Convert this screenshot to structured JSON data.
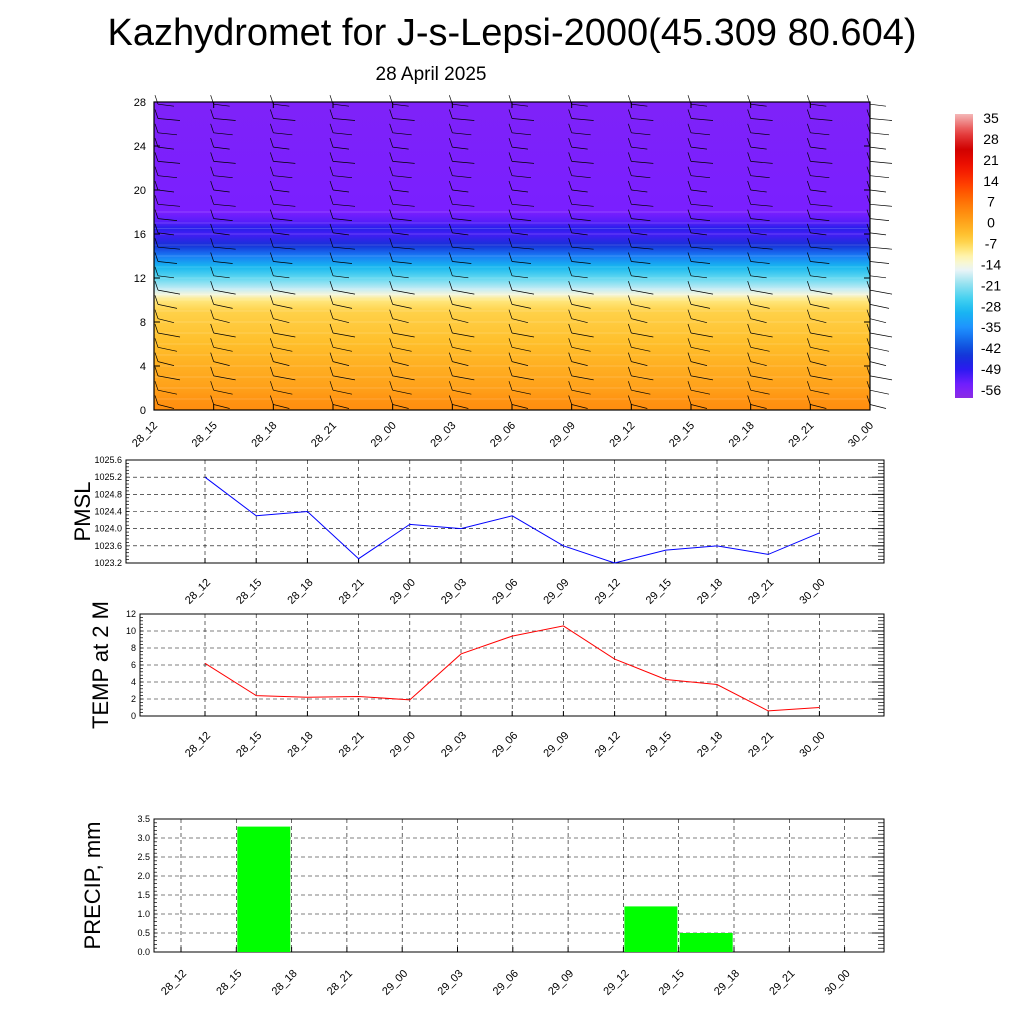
{
  "title": "Kazhydromet for J-s-Lepsi-2000(45.309 80.604)",
  "subtitle": "28 April 2025",
  "chart_data": [
    {
      "type": "heatmap",
      "name": "temperature-wind-profile",
      "x": [
        "28_12",
        "28_15",
        "28_18",
        "28_21",
        "29_00",
        "29_03",
        "29_06",
        "29_09",
        "29_12",
        "29_15",
        "29_18",
        "29_21",
        "30_00"
      ],
      "ylim": [
        0,
        28
      ],
      "yticks": [
        0,
        4,
        8,
        12,
        16,
        20,
        24,
        28
      ],
      "colorbar": {
        "ticks": [
          "35",
          "28",
          "21",
          "14",
          "7",
          "0",
          "-7",
          "-14",
          "-21",
          "-28",
          "-35",
          "-42",
          "-49",
          "-56"
        ],
        "range": [
          -60,
          38
        ]
      },
      "layers": [
        {
          "y": 0,
          "value": 4
        },
        {
          "y": 1,
          "value": 3
        },
        {
          "y": 2,
          "value": 1
        },
        {
          "y": 3,
          "value": 0
        },
        {
          "y": 4,
          "value": -1
        },
        {
          "y": 5,
          "value": -2
        },
        {
          "y": 6,
          "value": -3
        },
        {
          "y": 7,
          "value": -4
        },
        {
          "y": 8,
          "value": -5
        },
        {
          "y": 9,
          "value": -6
        },
        {
          "y": 10,
          "value": -9
        },
        {
          "y": 10.5,
          "value": -14
        },
        {
          "y": 11,
          "value": -18
        },
        {
          "y": 12,
          "value": -24
        },
        {
          "y": 13,
          "value": -30
        },
        {
          "y": 14,
          "value": -38
        },
        {
          "y": 15,
          "value": -46
        },
        {
          "y": 16,
          "value": -52
        },
        {
          "y": 16.5,
          "value": -49
        },
        {
          "y": 17,
          "value": -53
        },
        {
          "y": 18,
          "value": -56
        },
        {
          "y": 28,
          "value": -57
        }
      ]
    },
    {
      "type": "line",
      "name": "pmsl",
      "ylabel": "PMSL",
      "categories": [
        "28_12",
        "28_15",
        "28_18",
        "28_21",
        "29_00",
        "29_03",
        "29_06",
        "29_09",
        "29_12",
        "29_15",
        "29_18",
        "29_21",
        "30_00"
      ],
      "values": [
        1025.2,
        1024.3,
        1024.4,
        1023.3,
        1024.1,
        1024.0,
        1024.3,
        1023.6,
        1023.2,
        1023.5,
        1023.6,
        1023.4,
        1023.9
      ],
      "ylim": [
        1023.2,
        1025.6
      ],
      "yticks": [
        "1023.2",
        "1023.6",
        "1024.0",
        "1024.4",
        "1024.8",
        "1025.2",
        "1025.6"
      ],
      "color": "#0000ff",
      "grid": true
    },
    {
      "type": "line",
      "name": "temp-2m",
      "ylabel": "TEMP at 2 M",
      "categories": [
        "28_12",
        "28_15",
        "28_18",
        "28_21",
        "29_00",
        "29_03",
        "29_06",
        "29_09",
        "29_12",
        "29_15",
        "29_18",
        "29_21",
        "30_00"
      ],
      "values": [
        6.2,
        2.4,
        2.2,
        2.3,
        1.9,
        7.3,
        9.4,
        10.6,
        6.7,
        4.3,
        3.7,
        0.6,
        1.0
      ],
      "ylim": [
        0,
        12
      ],
      "yticks": [
        "0",
        "2",
        "4",
        "6",
        "8",
        "10",
        "12"
      ],
      "color": "#ff0000",
      "grid": true
    },
    {
      "type": "bar",
      "name": "precip",
      "ylabel": "PRECIP, mm",
      "categories": [
        "28_12",
        "28_15",
        "28_18",
        "28_21",
        "29_00",
        "29_03",
        "29_06",
        "29_09",
        "29_12",
        "29_15",
        "29_18",
        "29_21",
        "30_00"
      ],
      "values": [
        0,
        3.3,
        0,
        0,
        0,
        0,
        0,
        0,
        1.2,
        0.5,
        0,
        0,
        0
      ],
      "ylim": [
        0,
        3.5
      ],
      "yticks": [
        "0.0",
        "0.5",
        "1.0",
        "1.5",
        "2.0",
        "2.5",
        "3.0",
        "3.5"
      ],
      "color": "#00ff00",
      "grid": true
    }
  ]
}
